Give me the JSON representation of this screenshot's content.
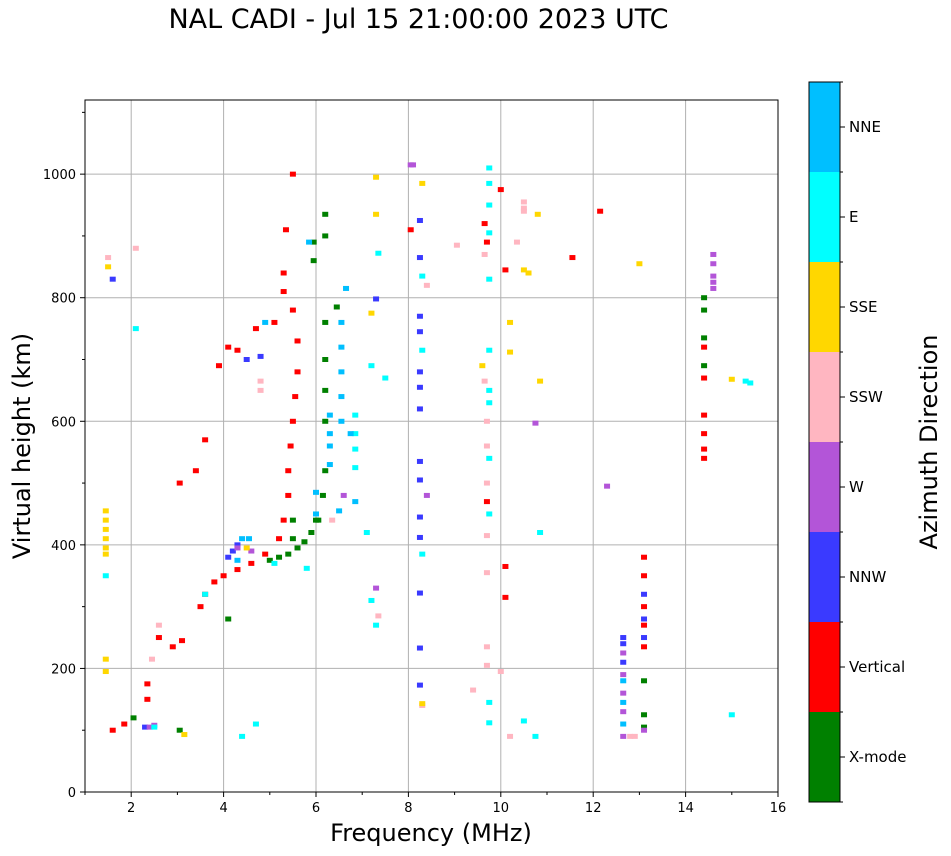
{
  "chart_data": {
    "type": "scatter",
    "title": "NAL CADI - Jul 15 21:00:00 2023 UTC",
    "xlabel": "Frequency (MHz)",
    "ylabel": "Virtual height (km)",
    "xlim": [
      1,
      16
    ],
    "ylim": [
      0,
      1120
    ],
    "xticks": [
      2,
      4,
      6,
      8,
      10,
      12,
      14,
      16
    ],
    "yticks": [
      0,
      200,
      400,
      600,
      800,
      1000
    ],
    "grid": true,
    "colorbar": {
      "label": "Azimuth Direction",
      "categories": [
        {
          "name": "X-mode",
          "color": "#008000"
        },
        {
          "name": "Vertical",
          "color": "#ff0000"
        },
        {
          "name": "NNW",
          "color": "#3a3aff"
        },
        {
          "name": "W",
          "color": "#b355d8"
        },
        {
          "name": "SSW",
          "color": "#ffb6c1"
        },
        {
          "name": "SSE",
          "color": "#ffd700"
        },
        {
          "name": "E",
          "color": "#00ffff"
        },
        {
          "name": "NNE",
          "color": "#00bfff"
        }
      ]
    },
    "series": [
      {
        "name": "X-mode",
        "points": [
          [
            2.05,
            120
          ],
          [
            3.05,
            100
          ],
          [
            4.1,
            280
          ],
          [
            5.0,
            375
          ],
          [
            5.2,
            380
          ],
          [
            5.4,
            385
          ],
          [
            5.6,
            395
          ],
          [
            5.75,
            405
          ],
          [
            5.9,
            420
          ],
          [
            6.05,
            440
          ],
          [
            6.15,
            480
          ],
          [
            6.2,
            520
          ],
          [
            6.2,
            600
          ],
          [
            6.2,
            650
          ],
          [
            6.2,
            700
          ],
          [
            6.2,
            760
          ],
          [
            6.2,
            900
          ],
          [
            6.2,
            935
          ],
          [
            5.95,
            860
          ],
          [
            5.95,
            890
          ],
          [
            6.0,
            440
          ],
          [
            6.45,
            785
          ],
          [
            5.5,
            410
          ],
          [
            5.5,
            440
          ],
          [
            14.4,
            800
          ],
          [
            14.4,
            780
          ],
          [
            14.4,
            735
          ],
          [
            14.4,
            690
          ],
          [
            13.1,
            180
          ],
          [
            13.1,
            125
          ],
          [
            13.1,
            105
          ]
        ]
      },
      {
        "name": "Vertical",
        "points": [
          [
            1.6,
            100
          ],
          [
            1.85,
            110
          ],
          [
            2.35,
            150
          ],
          [
            2.35,
            175
          ],
          [
            2.6,
            250
          ],
          [
            2.9,
            235
          ],
          [
            3.1,
            245
          ],
          [
            3.5,
            300
          ],
          [
            3.6,
            320
          ],
          [
            3.8,
            340
          ],
          [
            4.0,
            350
          ],
          [
            4.3,
            360
          ],
          [
            4.6,
            370
          ],
          [
            4.9,
            385
          ],
          [
            5.2,
            410
          ],
          [
            5.3,
            440
          ],
          [
            5.4,
            480
          ],
          [
            5.4,
            520
          ],
          [
            5.45,
            560
          ],
          [
            5.5,
            600
          ],
          [
            5.55,
            640
          ],
          [
            5.6,
            680
          ],
          [
            5.6,
            730
          ],
          [
            5.5,
            780
          ],
          [
            5.3,
            810
          ],
          [
            5.3,
            840
          ],
          [
            5.35,
            910
          ],
          [
            5.5,
            1000
          ],
          [
            3.9,
            690
          ],
          [
            4.1,
            720
          ],
          [
            4.3,
            715
          ],
          [
            4.7,
            750
          ],
          [
            5.1,
            760
          ],
          [
            3.6,
            570
          ],
          [
            3.4,
            520
          ],
          [
            3.05,
            500
          ],
          [
            8.05,
            910
          ],
          [
            9.65,
            920
          ],
          [
            10.0,
            975
          ],
          [
            10.1,
            845
          ],
          [
            10.1,
            365
          ],
          [
            10.1,
            315
          ],
          [
            12.15,
            940
          ],
          [
            11.55,
            865
          ],
          [
            9.7,
            470
          ],
          [
            9.7,
            890
          ],
          [
            13.1,
            380
          ],
          [
            13.1,
            350
          ],
          [
            13.1,
            300
          ],
          [
            13.1,
            270
          ],
          [
            13.1,
            235
          ],
          [
            14.4,
            720
          ],
          [
            14.4,
            670
          ],
          [
            14.4,
            610
          ],
          [
            14.4,
            580
          ],
          [
            14.4,
            555
          ],
          [
            14.4,
            540
          ]
        ]
      },
      {
        "name": "NNW",
        "points": [
          [
            1.6,
            830
          ],
          [
            2.3,
            105
          ],
          [
            4.1,
            380
          ],
          [
            4.2,
            390
          ],
          [
            4.3,
            400
          ],
          [
            4.5,
            700
          ],
          [
            4.8,
            705
          ],
          [
            8.25,
            925
          ],
          [
            8.25,
            865
          ],
          [
            8.25,
            770
          ],
          [
            8.25,
            745
          ],
          [
            8.25,
            680
          ],
          [
            8.25,
            655
          ],
          [
            8.25,
            620
          ],
          [
            8.25,
            535
          ],
          [
            8.25,
            505
          ],
          [
            8.25,
            445
          ],
          [
            8.25,
            412
          ],
          [
            8.25,
            322
          ],
          [
            8.25,
            233
          ],
          [
            8.25,
            173
          ],
          [
            7.3,
            798
          ],
          [
            13.1,
            320
          ],
          [
            13.1,
            280
          ],
          [
            13.1,
            250
          ],
          [
            12.65,
            250
          ],
          [
            12.65,
            240
          ],
          [
            12.65,
            210
          ]
        ]
      },
      {
        "name": "W",
        "points": [
          [
            2.4,
            105
          ],
          [
            2.5,
            108
          ],
          [
            4.3,
            395
          ],
          [
            4.6,
            390
          ],
          [
            6.6,
            480
          ],
          [
            8.1,
            1015
          ],
          [
            8.4,
            480
          ],
          [
            12.3,
            495
          ],
          [
            10.75,
            597
          ],
          [
            12.65,
            225
          ],
          [
            12.65,
            190
          ],
          [
            12.65,
            160
          ],
          [
            12.65,
            130
          ],
          [
            12.65,
            90
          ],
          [
            13.1,
            100
          ],
          [
            14.6,
            870
          ],
          [
            14.6,
            855
          ],
          [
            14.6,
            835
          ],
          [
            14.6,
            825
          ],
          [
            14.6,
            815
          ],
          [
            7.3,
            330
          ],
          [
            8.05,
            1015
          ]
        ]
      },
      {
        "name": "SSW",
        "points": [
          [
            1.5,
            865
          ],
          [
            2.1,
            880
          ],
          [
            2.45,
            215
          ],
          [
            2.6,
            270
          ],
          [
            4.8,
            650
          ],
          [
            4.8,
            665
          ],
          [
            6.35,
            440
          ],
          [
            8.4,
            820
          ],
          [
            9.05,
            885
          ],
          [
            9.65,
            665
          ],
          [
            9.7,
            600
          ],
          [
            9.7,
            560
          ],
          [
            9.7,
            500
          ],
          [
            9.7,
            415
          ],
          [
            9.7,
            355
          ],
          [
            9.7,
            235
          ],
          [
            9.7,
            205
          ],
          [
            9.65,
            870
          ],
          [
            10.35,
            890
          ],
          [
            10.5,
            955
          ],
          [
            10.5,
            945
          ],
          [
            10.5,
            940
          ],
          [
            10.2,
            90
          ],
          [
            12.8,
            90
          ],
          [
            12.9,
            90
          ],
          [
            9.4,
            165
          ],
          [
            10.0,
            195
          ],
          [
            7.35,
            285
          ],
          [
            8.3,
            140
          ]
        ]
      },
      {
        "name": "SSE",
        "points": [
          [
            1.45,
            455
          ],
          [
            1.45,
            440
          ],
          [
            1.45,
            425
          ],
          [
            1.45,
            410
          ],
          [
            1.45,
            395
          ],
          [
            1.45,
            385
          ],
          [
            1.45,
            215
          ],
          [
            1.45,
            195
          ],
          [
            1.5,
            850
          ],
          [
            3.15,
            93
          ],
          [
            7.3,
            995
          ],
          [
            7.3,
            935
          ],
          [
            7.2,
            775
          ],
          [
            8.3,
            985
          ],
          [
            8.3,
            143
          ],
          [
            10.2,
            760
          ],
          [
            10.2,
            712
          ],
          [
            10.5,
            845
          ],
          [
            10.6,
            840
          ],
          [
            10.8,
            935
          ],
          [
            10.85,
            665
          ],
          [
            13.0,
            855
          ],
          [
            15.0,
            668
          ],
          [
            9.6,
            690
          ],
          [
            4.5,
            395
          ]
        ]
      },
      {
        "name": "E",
        "points": [
          [
            1.45,
            350
          ],
          [
            2.1,
            750
          ],
          [
            2.5,
            105
          ],
          [
            3.6,
            320
          ],
          [
            4.4,
            90
          ],
          [
            4.7,
            110
          ],
          [
            5.8,
            362
          ],
          [
            6.85,
            610
          ],
          [
            6.85,
            580
          ],
          [
            6.85,
            555
          ],
          [
            6.85,
            525
          ],
          [
            7.1,
            420
          ],
          [
            7.2,
            690
          ],
          [
            7.35,
            872
          ],
          [
            7.5,
            670
          ],
          [
            8.3,
            835
          ],
          [
            8.3,
            715
          ],
          [
            8.3,
            385
          ],
          [
            9.75,
            1010
          ],
          [
            9.75,
            985
          ],
          [
            9.75,
            950
          ],
          [
            9.75,
            905
          ],
          [
            9.75,
            830
          ],
          [
            9.75,
            715
          ],
          [
            9.75,
            650
          ],
          [
            9.75,
            630
          ],
          [
            9.75,
            540
          ],
          [
            9.75,
            450
          ],
          [
            9.75,
            145
          ],
          [
            9.75,
            112
          ],
          [
            10.5,
            115
          ],
          [
            10.75,
            90
          ],
          [
            10.85,
            420
          ],
          [
            15.3,
            665
          ],
          [
            15.4,
            662
          ],
          [
            15.0,
            125
          ],
          [
            7.3,
            270
          ],
          [
            7.2,
            310
          ],
          [
            5.1,
            370
          ]
        ]
      },
      {
        "name": "NNE",
        "points": [
          [
            4.3,
            375
          ],
          [
            4.4,
            410
          ],
          [
            4.9,
            760
          ],
          [
            6.0,
            450
          ],
          [
            6.0,
            485
          ],
          [
            6.3,
            530
          ],
          [
            6.3,
            560
          ],
          [
            6.3,
            580
          ],
          [
            6.3,
            610
          ],
          [
            6.55,
            600
          ],
          [
            6.55,
            640
          ],
          [
            6.55,
            680
          ],
          [
            6.55,
            720
          ],
          [
            6.55,
            760
          ],
          [
            6.5,
            455
          ],
          [
            6.65,
            815
          ],
          [
            6.75,
            580
          ],
          [
            12.65,
            180
          ],
          [
            12.65,
            145
          ],
          [
            12.65,
            110
          ],
          [
            5.85,
            890
          ],
          [
            6.85,
            470
          ],
          [
            4.55,
            410
          ]
        ]
      }
    ]
  }
}
